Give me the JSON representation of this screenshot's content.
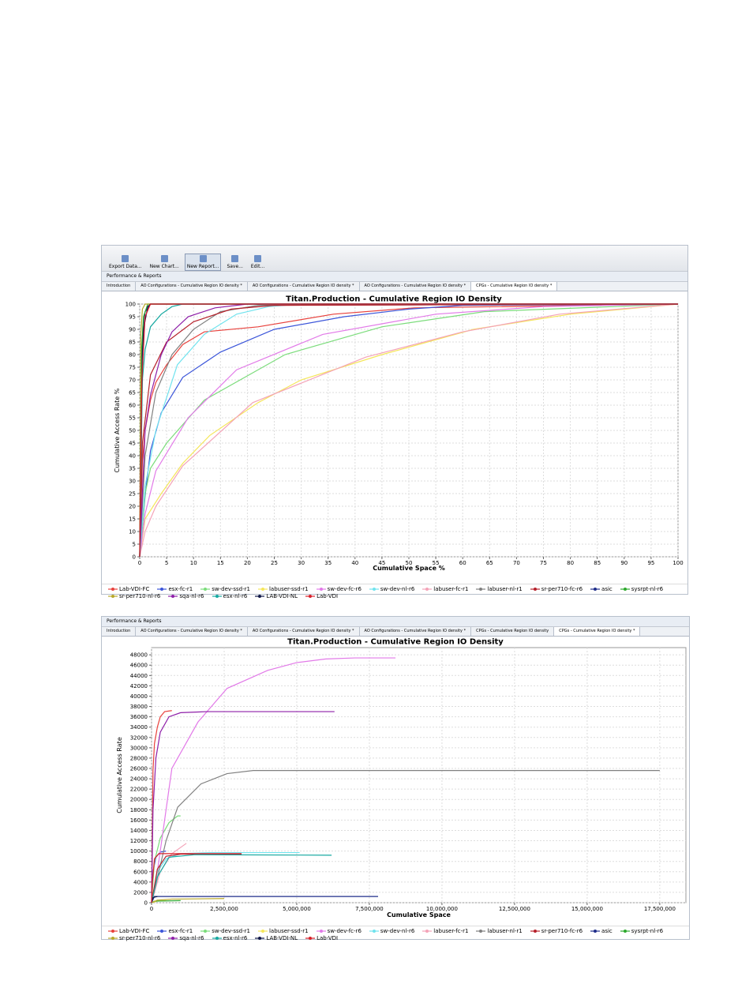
{
  "toolbar": {
    "buttons": [
      "Export Data...",
      "New Chart...",
      "New Report...",
      "Save...",
      "Edit..."
    ]
  },
  "screens": [
    {
      "panel_title": "Performance & Reports",
      "tabs": [
        "Introduction",
        "AO Configurations - Cumulative Region IO density *",
        "AO Configurations - Cumulative Region IO density *",
        "AO Configurations - Cumulative Region IO density *",
        "CPGs - Cumulative Region IO density *"
      ]
    },
    {
      "panel_title": "Performance & Reports",
      "tabs": [
        "Introduction",
        "AO Configurations - Cumulative Region IO density *",
        "AO Configurations - Cumulative Region IO density *",
        "AO Configurations - Cumulative Region IO density *",
        "CPGs - Cumulative Region IO density",
        "CPGs - Cumulative Region IO density *"
      ]
    }
  ],
  "chart_data": [
    {
      "type": "line",
      "title": "Titan.Production - Cumulative Region IO Density",
      "x_label": "Cumulative Space %",
      "y_label": "Cumulative Access Rate %",
      "xlim": [
        0,
        100
      ],
      "ylim": [
        0,
        100
      ],
      "xticks": [
        0,
        5,
        10,
        15,
        20,
        25,
        30,
        35,
        40,
        45,
        50,
        55,
        60,
        65,
        70,
        75,
        80,
        85,
        90,
        95,
        100
      ],
      "yticks": [
        0,
        5,
        10,
        15,
        20,
        25,
        30,
        35,
        40,
        45,
        50,
        55,
        60,
        65,
        70,
        75,
        80,
        85,
        90,
        95,
        100
      ],
      "grid": true,
      "series": [
        {
          "name": "Lab-VDI-FC",
          "color": "#e8413c",
          "x": [
            0,
            0.5,
            1,
            2,
            3,
            5,
            8,
            12,
            22,
            36,
            51,
            100
          ],
          "values": [
            0,
            38,
            50,
            62,
            69,
            76,
            84,
            89,
            91,
            96,
            98.5,
            100
          ]
        },
        {
          "name": "esx-fc-r1",
          "color": "#3b55d9",
          "x": [
            0,
            1,
            2,
            4,
            8,
            15,
            25,
            38,
            50,
            60,
            100
          ],
          "values": [
            0,
            24,
            42,
            57,
            71,
            81,
            90,
            95,
            98,
            99.5,
            100
          ]
        },
        {
          "name": "sw-dev-ssd-r1",
          "color": "#7bdc7b",
          "x": [
            0,
            0.5,
            1,
            2,
            5,
            12,
            27,
            45,
            64,
            100
          ],
          "values": [
            0,
            12,
            25,
            35,
            45,
            62,
            80,
            91,
            97,
            100
          ]
        },
        {
          "name": "labuser-ssd-r1",
          "color": "#f5e65a",
          "x": [
            0,
            1,
            4,
            8,
            13,
            22,
            30,
            45,
            62,
            80,
            100
          ],
          "values": [
            0,
            15,
            25,
            37,
            48,
            61,
            70,
            80,
            90,
            96,
            100
          ]
        },
        {
          "name": "sw-dev-fc-r6",
          "color": "#e27ae8",
          "x": [
            0,
            1,
            3,
            9,
            18,
            34,
            55,
            75,
            100
          ],
          "values": [
            0,
            17,
            34,
            55,
            74,
            88,
            96,
            99,
            100
          ]
        },
        {
          "name": "sw-dev-nl-r6",
          "color": "#70e3ee",
          "x": [
            0,
            1,
            3,
            7,
            12,
            18,
            24,
            30,
            100
          ],
          "values": [
            0,
            28,
            50,
            76,
            88,
            96,
            99,
            100,
            100
          ]
        },
        {
          "name": "labuser-fc-r1",
          "color": "#f4a3b8",
          "x": [
            0,
            1,
            3,
            8,
            21,
            42,
            60,
            78,
            100
          ],
          "values": [
            0,
            10,
            20,
            36,
            61,
            79,
            89,
            96,
            100
          ]
        },
        {
          "name": "labuser-nl-r1",
          "color": "#808080",
          "x": [
            0,
            1,
            3,
            6,
            10,
            15,
            22,
            100
          ],
          "values": [
            0,
            40,
            65,
            80,
            90,
            97,
            99.5,
            100
          ]
        },
        {
          "name": "sr-per710-fc-r6",
          "color": "#b5202a",
          "x": [
            0,
            0.5,
            2,
            5,
            10,
            17,
            25,
            100
          ],
          "values": [
            0,
            45,
            72,
            85,
            93,
            98,
            99.5,
            100
          ]
        },
        {
          "name": "asic",
          "color": "#1f2d8a",
          "x": [
            0,
            0.2,
            0.5,
            1,
            2,
            100
          ],
          "values": [
            0,
            50,
            85,
            97,
            100,
            100
          ]
        },
        {
          "name": "sysrpt-nl-r6",
          "color": "#2ca82c",
          "x": [
            0,
            0.3,
            0.7,
            1.5,
            100
          ],
          "values": [
            0,
            80,
            95,
            100,
            100
          ]
        },
        {
          "name": "sr-per710-nl-r6",
          "color": "#b8a82a",
          "x": [
            0,
            0.2,
            0.5,
            1,
            100
          ],
          "values": [
            0,
            88,
            98,
            100,
            100
          ]
        },
        {
          "name": "sqa-nl-r6",
          "color": "#8e1fa8",
          "x": [
            0,
            1,
            2,
            4,
            6,
            9,
            14,
            20,
            100
          ],
          "values": [
            0,
            50,
            64,
            80,
            89,
            95,
            98.5,
            100,
            100
          ]
        },
        {
          "name": "esx-nl-r6",
          "color": "#15a8a0",
          "x": [
            0,
            0.5,
            1,
            2,
            4,
            6,
            8,
            100
          ],
          "values": [
            0,
            70,
            82,
            91,
            96,
            99,
            100,
            100
          ]
        },
        {
          "name": "LAB-VDI-NL",
          "color": "#101848",
          "x": [
            0,
            0.3,
            0.7,
            1.5,
            2,
            100
          ],
          "values": [
            0,
            60,
            90,
            99,
            100,
            100
          ]
        },
        {
          "name": "Lab-VDI",
          "color": "#d8202a",
          "x": [
            0,
            0.1,
            0.4,
            1,
            2,
            100
          ],
          "values": [
            0,
            20,
            70,
            95,
            100,
            100
          ]
        }
      ]
    },
    {
      "type": "line",
      "title": "Titan.Production - Cumulative Region IO Density",
      "x_label": "Cumulative Space",
      "y_label": "Cumulative Access Rate",
      "xlim": [
        0,
        18400000
      ],
      "ylim": [
        0,
        49400
      ],
      "xticks": [
        0,
        {
          "value": 2500000,
          "label": "2,500,000"
        },
        {
          "value": 5000000,
          "label": "5,000,000"
        },
        {
          "value": 7500000,
          "label": "7,500,000"
        },
        {
          "value": 10000000,
          "label": "10,000,000"
        },
        {
          "value": 12500000,
          "label": "12,500,000"
        },
        {
          "value": 15000000,
          "label": "15,000,000"
        },
        {
          "value": 17500000,
          "label": "17,500,000"
        }
      ],
      "yticks": [
        0,
        2000,
        4000,
        6000,
        8000,
        10000,
        12000,
        14000,
        16000,
        18000,
        20000,
        22000,
        24000,
        26000,
        28000,
        30000,
        32000,
        34000,
        36000,
        38000,
        40000,
        42000,
        44000,
        46000,
        48000
      ],
      "grid": true,
      "series": [
        {
          "name": "Lab-VDI-FC",
          "color": "#e8413c",
          "x": [
            0,
            50000,
            100000,
            200000,
            300000,
            450000,
            700000
          ],
          "values": [
            0,
            25600,
            30800,
            34000,
            36000,
            37000,
            37200
          ]
        },
        {
          "name": "esx-fc-r1",
          "color": "#3b55d9",
          "x": [
            0,
            50000,
            150000,
            300000,
            500000
          ],
          "values": [
            0,
            6000,
            8800,
            9800,
            10000
          ]
        },
        {
          "name": "sw-dev-ssd-r1",
          "color": "#7bdc7b",
          "x": [
            0,
            100000,
            300000,
            600000,
            900000,
            1000000
          ],
          "values": [
            0,
            8000,
            12500,
            15500,
            16800,
            16800
          ]
        },
        {
          "name": "labuser-ssd-r1",
          "color": "#f5e65a",
          "x": [
            0,
            200000,
            500000
          ],
          "values": [
            0,
            300,
            400
          ]
        },
        {
          "name": "sw-dev-fc-r6",
          "color": "#e27ae8",
          "x": [
            0,
            200000,
            700000,
            1600000,
            2600000,
            4000000,
            5000000,
            6000000,
            7000000,
            8400000
          ],
          "values": [
            0,
            6000,
            26000,
            35000,
            41500,
            45000,
            46500,
            47200,
            47400,
            47400
          ]
        },
        {
          "name": "sw-dev-nl-r6",
          "color": "#70e3ee",
          "x": [
            0,
            200000,
            500000,
            1000000,
            2000000,
            5100000
          ],
          "values": [
            0,
            6000,
            8500,
            9500,
            9700,
            9700
          ]
        },
        {
          "name": "labuser-fc-r1",
          "color": "#f4a3b8",
          "x": [
            0,
            300000,
            700000,
            1200000
          ],
          "values": [
            0,
            6000,
            9500,
            11500
          ]
        },
        {
          "name": "labuser-nl-r1",
          "color": "#808080",
          "x": [
            0,
            500000,
            900000,
            1700000,
            2600000,
            3500000,
            17500000
          ],
          "values": [
            0,
            12000,
            18500,
            23000,
            25000,
            25600,
            25600
          ]
        },
        {
          "name": "sr-per710-fc-r6",
          "color": "#b5202a",
          "x": [
            0,
            200000,
            500000,
            1000000,
            3100000
          ],
          "values": [
            0,
            6500,
            9000,
            9400,
            9400
          ]
        },
        {
          "name": "asic",
          "color": "#1f2d8a",
          "x": [
            0,
            100000,
            7800000
          ],
          "values": [
            0,
            1200,
            1200
          ]
        },
        {
          "name": "sysrpt-nl-r6",
          "color": "#2ca82c",
          "x": [
            0,
            100000,
            1000000
          ],
          "values": [
            0,
            300,
            400
          ]
        },
        {
          "name": "sr-per710-nl-r6",
          "color": "#b8a82a",
          "x": [
            0,
            200000,
            700000,
            2500000
          ],
          "values": [
            0,
            500,
            700,
            800
          ]
        },
        {
          "name": "sqa-nl-r6",
          "color": "#8e1fa8",
          "x": [
            0,
            50000,
            150000,
            300000,
            600000,
            1000000,
            1900000,
            6300000
          ],
          "values": [
            0,
            18000,
            28000,
            33000,
            36000,
            36800,
            37000,
            37000
          ]
        },
        {
          "name": "esx-nl-r6",
          "color": "#15a8a0",
          "x": [
            0,
            200000,
            600000,
            1500000,
            6200000
          ],
          "values": [
            0,
            5000,
            8800,
            9300,
            9200
          ]
        },
        {
          "name": "LAB-VDI-NL",
          "color": "#101848",
          "x": [
            0,
            50000,
            200000
          ],
          "values": [
            0,
            1000,
            1200
          ]
        },
        {
          "name": "Lab-VDI",
          "color": "#d8202a",
          "x": [
            0,
            30000,
            100000,
            250000,
            3100000
          ],
          "values": [
            0,
            4000,
            8500,
            9500,
            9500
          ]
        }
      ]
    }
  ]
}
